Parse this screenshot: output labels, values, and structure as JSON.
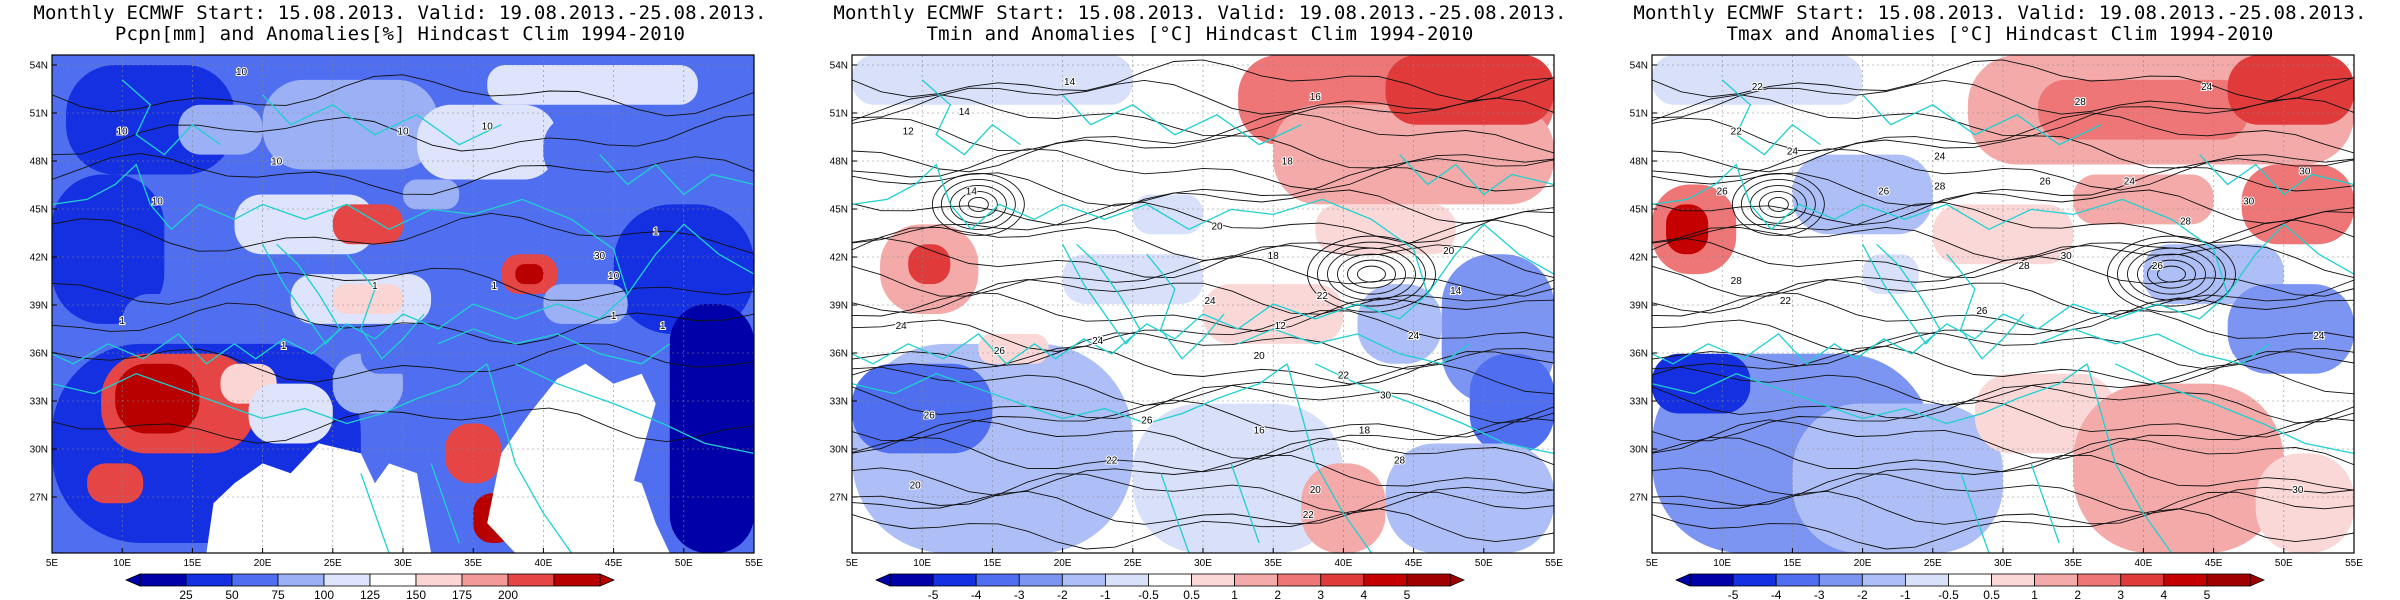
{
  "panels": [
    {
      "id": "precip",
      "title_line1": "Monthly ECMWF Start: 15.08.2013. Valid: 19.08.2013.-25.08.2013.",
      "title_line2": "Pcpn[mm] and Anomalies[%] Hindcast Clim 1994-2010",
      "lat_ticks": [
        "54N",
        "51N",
        "48N",
        "45N",
        "42N",
        "39N",
        "36N",
        "33N",
        "30N",
        "27N"
      ],
      "lon_ticks": [
        "5E",
        "10E",
        "15E",
        "20E",
        "25E",
        "30E",
        "35E",
        "40E",
        "45E",
        "50E",
        "55E"
      ],
      "colorbar": {
        "labels": [
          "25",
          "50",
          "75",
          "100",
          "125",
          "150",
          "175",
          "200"
        ],
        "colors": [
          "#0000a8",
          "#1530e0",
          "#4f6ef0",
          "#9bb0f5",
          "#dde4fb",
          "#ffffff",
          "#fbd4d4",
          "#f29a9a",
          "#e64545",
          "#b80000"
        ]
      },
      "contour_labels": [
        "10",
        "10",
        "10",
        "10",
        "10",
        "10",
        "1",
        "1",
        "1",
        "1",
        "1",
        "30",
        "10",
        "1",
        "1"
      ]
    },
    {
      "id": "tmin",
      "title_line1": "Monthly ECMWF Start: 15.08.2013. Valid: 19.08.2013.-25.08.2013.",
      "title_line2": "Tmin and Anomalies [°C] Hindcast Clim 1994-2010",
      "lat_ticks": [
        "54N",
        "51N",
        "48N",
        "45N",
        "42N",
        "39N",
        "36N",
        "33N",
        "30N",
        "27N"
      ],
      "lon_ticks": [
        "5E",
        "10E",
        "15E",
        "20E",
        "25E",
        "30E",
        "35E",
        "40E",
        "45E",
        "50E",
        "55E"
      ],
      "colorbar": {
        "labels": [
          "-5",
          "-4",
          "-3",
          "-2",
          "-1",
          "-0.5",
          "0.5",
          "1",
          "2",
          "3",
          "4",
          "5"
        ],
        "colors": [
          "#0000a8",
          "#1530e0",
          "#4f6ef0",
          "#7d95f2",
          "#aebef6",
          "#d8e0fa",
          "#ffffff",
          "#fbd8d8",
          "#f5aaaa",
          "#ee7676",
          "#e03a3a",
          "#c40000",
          "#a00000"
        ]
      },
      "contour_labels": [
        "14",
        "14",
        "16",
        "12",
        "14",
        "18",
        "20",
        "22",
        "24",
        "26",
        "24",
        "18",
        "20",
        "22",
        "26",
        "20",
        "16",
        "22",
        "14",
        "12",
        "20",
        "24",
        "26",
        "28",
        "30",
        "22",
        "24",
        "18",
        "20"
      ]
    },
    {
      "id": "tmax",
      "title_line1": "Monthly ECMWF Start: 15.08.2013. Valid: 19.08.2013.-25.08.2013.",
      "title_line2": "Tmax and Anomalies [°C] Hindcast Clim 1994-2010",
      "lat_ticks": [
        "54N",
        "51N",
        "48N",
        "45N",
        "42N",
        "39N",
        "36N",
        "33N",
        "30N",
        "27N"
      ],
      "lon_ticks": [
        "5E",
        "10E",
        "15E",
        "20E",
        "25E",
        "30E",
        "35E",
        "40E",
        "45E",
        "50E",
        "55E"
      ],
      "colorbar": {
        "labels": [
          "-5",
          "-4",
          "-3",
          "-2",
          "-1",
          "-0.5",
          "0.5",
          "1",
          "2",
          "3",
          "4",
          "5"
        ],
        "colors": [
          "#0000a8",
          "#1530e0",
          "#4f6ef0",
          "#7d95f2",
          "#aebef6",
          "#d8e0fa",
          "#ffffff",
          "#fbd8d8",
          "#f5aaaa",
          "#ee7676",
          "#e03a3a",
          "#c40000",
          "#a00000"
        ]
      },
      "contour_labels": [
        "22",
        "22",
        "24",
        "28",
        "30",
        "26",
        "24",
        "28",
        "26",
        "28",
        "30",
        "26",
        "28",
        "22",
        "24",
        "24",
        "26",
        "30",
        "28",
        "26",
        "24",
        "30"
      ]
    }
  ]
}
